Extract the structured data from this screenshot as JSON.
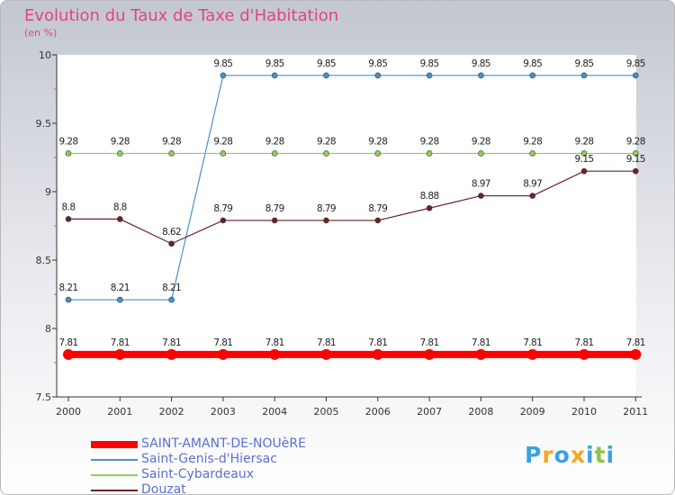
{
  "chart_data": {
    "type": "line",
    "title": "Evolution du Taux de Taxe d'Habitation",
    "subtitle": "(en %)",
    "xlabel": "",
    "ylabel": "",
    "x": [
      "2000",
      "2001",
      "2002",
      "2003",
      "2004",
      "2005",
      "2006",
      "2007",
      "2008",
      "2009",
      "2010",
      "2011"
    ],
    "ylim": [
      7.5,
      10
    ],
    "yticks": [
      "7.5",
      "8",
      "8.5",
      "9",
      "9.5",
      "10"
    ],
    "grid": false,
    "legend_position": "bottom-left",
    "series": [
      {
        "name": "SAINT-AMANT-DE-NOUèRE",
        "color": "#ff0000",
        "values": [
          7.81,
          7.81,
          7.81,
          7.81,
          7.81,
          7.81,
          7.81,
          7.81,
          7.81,
          7.81,
          7.81,
          7.81
        ],
        "labels": [
          "7.81",
          "7.81",
          "7.81",
          "7.81",
          "7.81",
          "7.81",
          "7.81",
          "7.81",
          "7.81",
          "7.81",
          "7.81",
          "7.81"
        ]
      },
      {
        "name": "Saint-Genis-d'Hiersac",
        "color": "#4a90c8",
        "values": [
          8.21,
          8.21,
          8.21,
          9.85,
          9.85,
          9.85,
          9.85,
          9.85,
          9.85,
          9.85,
          9.85,
          9.85
        ],
        "labels": [
          "8.21",
          "8.21",
          "8.21",
          "9.85",
          "9.85",
          "9.85",
          "9.85",
          "9.85",
          "9.85",
          "9.85",
          "9.85",
          "9.85"
        ]
      },
      {
        "name": "Saint-Cybardeaux",
        "color": "#8fd14f",
        "values": [
          9.28,
          9.28,
          9.28,
          9.28,
          9.28,
          9.28,
          9.28,
          9.28,
          9.28,
          9.28,
          9.28,
          9.28
        ],
        "labels": [
          "9.28",
          "9.28",
          "9.28",
          "9.28",
          "9.28",
          "9.28",
          "9.28",
          "9.28",
          "9.28",
          "9.28",
          "9.28",
          "9.28"
        ]
      },
      {
        "name": "Douzat",
        "color": "#6b2226",
        "values": [
          8.8,
          8.8,
          8.62,
          8.79,
          8.79,
          8.79,
          8.79,
          8.88,
          8.97,
          8.97,
          9.15,
          9.15
        ],
        "labels": [
          "8.8",
          "8.8",
          "8.62",
          "8.79",
          "8.79",
          "8.79",
          "8.79",
          "8.88",
          "8.97",
          "8.97",
          "9.15",
          "9.15"
        ]
      }
    ]
  },
  "brand": {
    "logo_letters": [
      "P",
      "r",
      "o",
      "x",
      "i",
      "t",
      "i"
    ],
    "logo_colors": [
      "#3aa2e0",
      "#f5a623",
      "#3aa2e0",
      "#f5a623",
      "#3aa2e0",
      "#8cc63f",
      "#3aa2e0"
    ]
  }
}
